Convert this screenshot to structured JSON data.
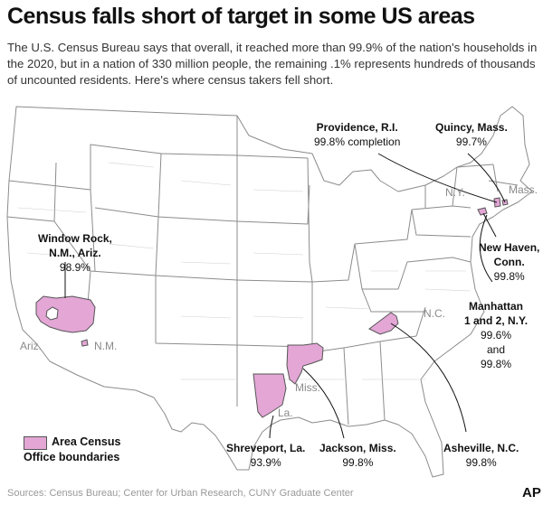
{
  "title": "Census falls short of target in some US areas",
  "subtitle": "The U.S. Census Bureau says that overall, it reached more than 99.9% of the nation's households in the 2020, but in a nation of 330 million people, the remaining .1% represents hundreds of thousands of uncounted residents. Here's where census takers fell short.",
  "highlight_color": "#e3a6d5",
  "callouts": {
    "providence": {
      "name": "Providence, R.I.",
      "value": "99.8% completion"
    },
    "quincy": {
      "name": "Quincy, Mass.",
      "value": "99.7%"
    },
    "window_rock": {
      "name_line1": "Window Rock,",
      "name_line2": "N.M., Ariz.",
      "value": "98.9%"
    },
    "new_haven": {
      "name_line1": "New Haven,",
      "name_line2": "Conn.",
      "value": "99.8%"
    },
    "manhattan": {
      "name_line1": "Manhattan",
      "name_line2": "1 and 2, N.Y.",
      "value1": "99.6%",
      "and": "and",
      "value2": "99.8%"
    },
    "shreveport": {
      "name": "Shreveport, La.",
      "value": "93.9%"
    },
    "jackson": {
      "name": "Jackson, Miss.",
      "value": "99.8%"
    },
    "asheville": {
      "name": "Asheville, N.C.",
      "value": "99.8%"
    }
  },
  "state_labels": {
    "ny": "N.Y.",
    "mass": "Mass.",
    "nc": "N.C.",
    "ariz": "Ariz.",
    "nm": "N.M.",
    "miss": "Miss.",
    "la": "La."
  },
  "legend": {
    "line1": "Area Census",
    "line2": "Office boundaries"
  },
  "source": "Sources: Census Bureau; Center for Urban Research, CUNY Graduate Center",
  "logo": "AP"
}
